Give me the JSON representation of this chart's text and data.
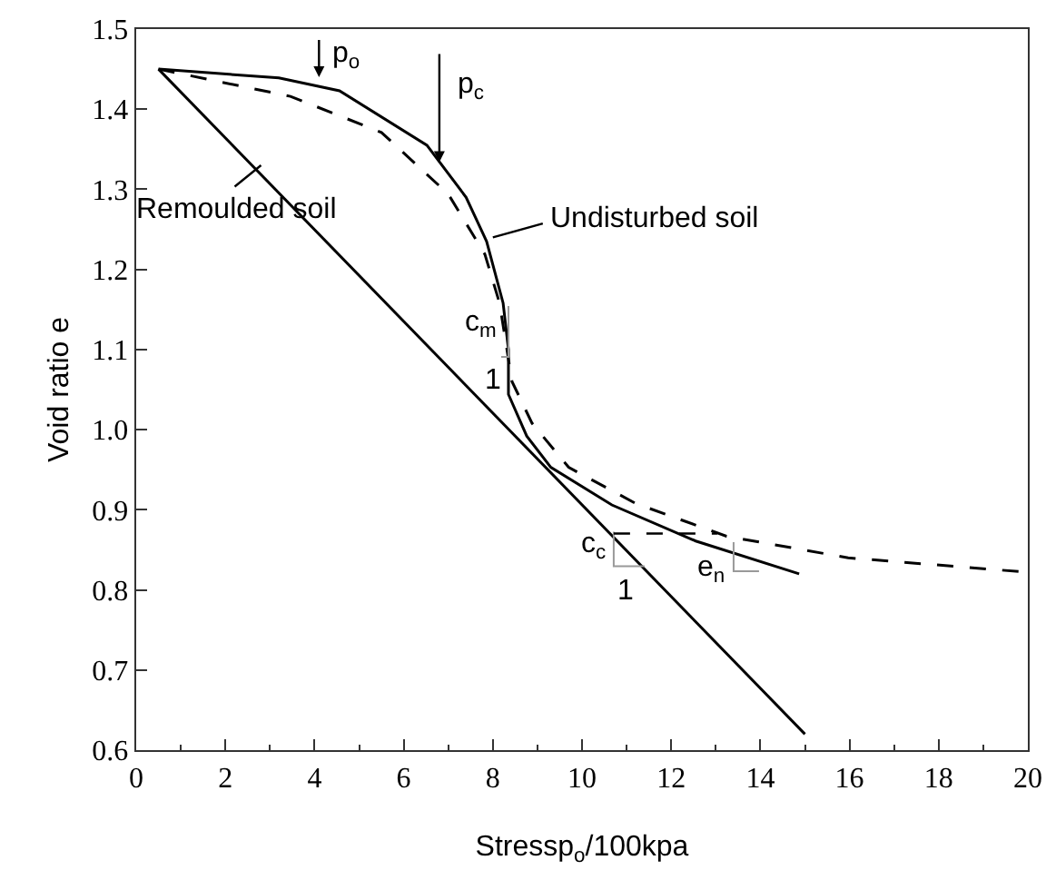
{
  "chart_data": {
    "type": "line",
    "xlabel": "Stressp$_{o}$/100kpa",
    "ylabel": "Void ratio e",
    "xlim": [
      0,
      20
    ],
    "xticks": [
      0,
      2,
      4,
      6,
      8,
      10,
      12,
      14,
      16,
      18,
      20
    ],
    "ylim": [
      0.6,
      1.5
    ],
    "yticks": [
      0.6,
      0.7,
      0.8,
      0.9,
      {
        "value": 1.0,
        "label": "1.0"
      },
      1.1,
      1.2,
      1.3,
      1.4,
      1.5
    ],
    "grid": false,
    "marker": "none",
    "series": [
      {
        "color": "#000000",
        "line_style": "solid",
        "x": [
          0.5,
          15
        ],
        "values": [
          1.45,
          0.62
        ]
      },
      {
        "color": "#000000",
        "line_style": "solid",
        "x": [
          0.5,
          3.2,
          4.56,
          6.52,
          7.4,
          7.86,
          8.23,
          8.35,
          8.35,
          8.76,
          9.3,
          10.67,
          12.55,
          14.87
        ],
        "values": [
          1.45,
          1.439,
          1.423,
          1.355,
          1.29,
          1.235,
          1.158,
          1.1,
          1.044,
          0.992,
          0.953,
          0.906,
          0.861,
          0.82
        ]
      },
      {
        "color": "#000000",
        "line_style": "dashed",
        "x": [
          0.5,
          3.46,
          5.5,
          7.0,
          7.82,
          8.15,
          8.43,
          8.88,
          9.7,
          11.2,
          13.24,
          15.97,
          20
        ],
        "values": [
          1.45,
          1.416,
          1.371,
          1.294,
          1.219,
          1.158,
          1.06,
          1.008,
          0.953,
          0.908,
          0.867,
          0.84,
          0.822
        ]
      }
    ],
    "annotations": [
      {
        "text": "p$_{o}$",
        "x": 4.1,
        "y": 1.44
      },
      {
        "text": "p$_{c}$",
        "x": 6.8,
        "y": 1.334
      },
      {
        "text": "Remoulded soil",
        "x": 2.8,
        "y": 1.33
      },
      {
        "text": "Undisturbed soil",
        "x": 8.0,
        "y": 1.24
      },
      {
        "text": "c$_{m}$",
        "x": 8.35,
        "y": 1.1
      },
      {
        "text": "1",
        "x": 8.35,
        "y": 1.044
      },
      {
        "text": "c$_{c}$",
        "x": 10.67,
        "y": 0.868
      },
      {
        "text": "1",
        "x": 10.67,
        "y": 0.868
      },
      {
        "text": "e$_{n}$",
        "x": 13.4,
        "y": 0.846
      }
    ]
  }
}
